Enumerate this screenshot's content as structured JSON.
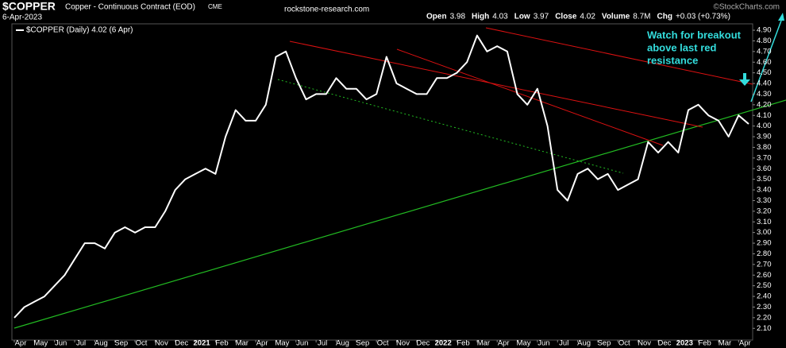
{
  "chart_data": {
    "type": "line",
    "title": "$COPPER",
    "subtitle": "Copper - Continuous Contract (EOD)",
    "exchange": "CME",
    "date": "6-Apr-2023",
    "source": "rockstone-research.com",
    "quote": [
      {
        "label": "Open",
        "value": 3.98
      },
      {
        "label": "High",
        "value": 4.03
      },
      {
        "label": "Low",
        "value": 3.97
      },
      {
        "label": "Close",
        "value": 4.02
      },
      {
        "label": "Volume",
        "value": "8.7M"
      },
      {
        "label": "Chg",
        "value": "+0.03 (+0.73%)"
      }
    ],
    "watermark": "©StockCharts.com",
    "annotation": [
      "Watch for breakout",
      "above last red",
      "resistance"
    ],
    "categories": [
      "Apr",
      null,
      "May",
      null,
      "Jun",
      null,
      "Jul",
      null,
      "Aug",
      null,
      "Sep",
      null,
      "Oct",
      null,
      "Nov",
      null,
      "Dec",
      null,
      "2021",
      null,
      "Feb",
      null,
      "Mar",
      null,
      "Apr",
      null,
      "May",
      null,
      "Jun",
      null,
      "Jul",
      null,
      "Aug",
      null,
      "Sep",
      null,
      "Oct",
      null,
      "Nov",
      null,
      "Dec",
      null,
      "2022",
      null,
      "Feb",
      null,
      "Mar",
      null,
      "Apr",
      null,
      "May",
      null,
      "Jun",
      null,
      "Jul",
      null,
      "Aug",
      null,
      "Sep",
      null,
      "Oct",
      null,
      "Nov",
      null,
      "Dec",
      null,
      "2023",
      null,
      "Feb",
      null,
      "Mar",
      null,
      "Apr",
      null
    ],
    "series": [
      {
        "name": "$COPPER (Daily) 4.02 (6 Apr)",
        "color": "#ffffff",
        "values": [
          2.2,
          2.3,
          2.35,
          2.4,
          2.5,
          2.6,
          2.75,
          2.9,
          2.9,
          2.85,
          3.0,
          3.05,
          3.0,
          3.05,
          3.05,
          3.2,
          3.4,
          3.5,
          3.55,
          3.6,
          3.55,
          3.9,
          4.15,
          4.05,
          4.05,
          4.2,
          4.65,
          4.7,
          4.45,
          4.25,
          4.3,
          4.3,
          4.45,
          4.35,
          4.35,
          4.25,
          4.3,
          4.65,
          4.4,
          4.35,
          4.3,
          4.3,
          4.45,
          4.45,
          4.5,
          4.6,
          4.85,
          4.7,
          4.75,
          4.7,
          4.3,
          4.2,
          4.35,
          4.0,
          3.4,
          3.3,
          3.55,
          3.6,
          3.5,
          3.55,
          3.4,
          3.45,
          3.5,
          3.85,
          3.75,
          3.85,
          3.75,
          4.15,
          4.2,
          4.1,
          4.05,
          3.9,
          4.1,
          4.02
        ]
      }
    ],
    "ylim": [
      1.99,
      4.96
    ],
    "yticks": [
      {
        "value": 2.1,
        "label": "2.10"
      },
      {
        "value": 2.2,
        "label": "2.20"
      },
      {
        "value": 2.3,
        "label": "2.30"
      },
      {
        "value": 2.4,
        "label": "2.40"
      },
      {
        "value": 2.5,
        "label": "2.50"
      },
      {
        "value": 2.6,
        "label": "2.60"
      },
      {
        "value": 2.7,
        "label": "2.70"
      },
      {
        "value": 2.8,
        "label": "2.80"
      },
      {
        "value": 2.9,
        "label": "2.90"
      },
      {
        "value": 3.0,
        "label": "3.00"
      },
      {
        "value": 3.1,
        "label": "3.10"
      },
      {
        "value": 3.2,
        "label": "3.20"
      },
      {
        "value": 3.3,
        "label": "3.30"
      },
      {
        "value": 3.4,
        "label": "3.40"
      },
      {
        "value": 3.5,
        "label": "3.50"
      },
      {
        "value": 3.6,
        "label": "3.60"
      },
      {
        "value": 3.7,
        "label": "3.70"
      },
      {
        "value": 3.8,
        "label": "3.80"
      },
      {
        "value": 3.9,
        "label": "3.90"
      },
      {
        "value": 4.0,
        "label": "4.00"
      },
      {
        "value": 4.1,
        "label": "4.10"
      },
      {
        "value": 4.2,
        "label": "4.20"
      },
      {
        "value": 4.3,
        "label": "4.30"
      },
      {
        "value": 4.4,
        "label": "4.40"
      },
      {
        "value": 4.5,
        "label": "4.50"
      },
      {
        "value": 4.6,
        "label": "4.60"
      },
      {
        "value": 4.7,
        "label": "4.70"
      },
      {
        "value": 4.8,
        "label": "4.80"
      },
      {
        "value": 4.9,
        "label": "4.90"
      }
    ],
    "grid": false
  }
}
